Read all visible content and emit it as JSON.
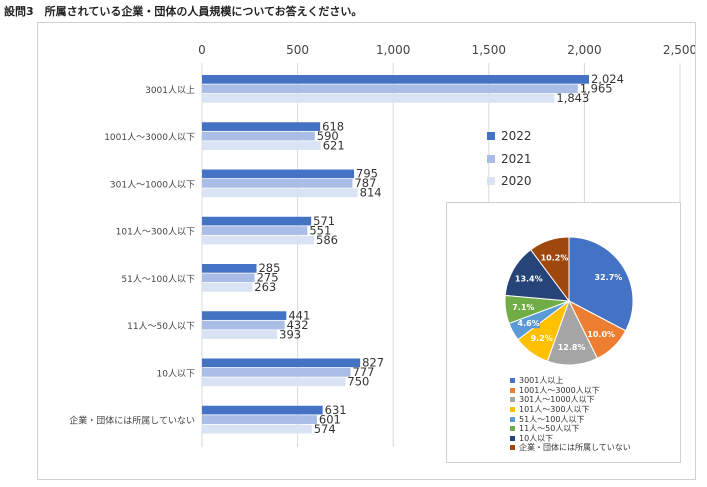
{
  "title": "設問3　所属されている企業・団体の人員規模についてお答えください。",
  "colors": {
    "2022": "#4472c4",
    "2021": "#a9bde6",
    "2020": "#dae3f3",
    "pie": [
      "#4472c4",
      "#ed7d31",
      "#a5a5a5",
      "#ffc000",
      "#5b9bd5",
      "#70ad47",
      "#264478",
      "#9e480e"
    ]
  },
  "chart_data": [
    {
      "type": "bar",
      "orientation": "horizontal",
      "categories": [
        "3001人以上",
        "1001人～3000人以下",
        "301人～1000人以下",
        "101人～300人以下",
        "51人～100人以下",
        "11人～50人以下",
        "10人以下",
        "企業・団体には所属していない"
      ],
      "series": [
        {
          "name": "2022",
          "values": [
            2024,
            618,
            795,
            571,
            285,
            441,
            827,
            631
          ]
        },
        {
          "name": "2021",
          "values": [
            1965,
            590,
            787,
            551,
            275,
            432,
            777,
            601
          ]
        },
        {
          "name": "2020",
          "values": [
            1843,
            621,
            814,
            586,
            263,
            393,
            750,
            574
          ]
        }
      ],
      "xlim": [
        0,
        2500
      ],
      "xticks": [
        "0",
        "500",
        "1,000",
        "1,500",
        "2,000",
        "2,500"
      ],
      "data_labels": true,
      "grid": true,
      "legend": "right"
    },
    {
      "type": "pie",
      "labels": [
        "3001人以上",
        "1001人～3000人以下",
        "301人～1000人以下",
        "101人～300人以下",
        "51人～100人以下",
        "11人～50人以下",
        "10人以下",
        "企業・団体には所属していない"
      ],
      "values": [
        32.7,
        10.0,
        12.8,
        9.2,
        4.6,
        7.1,
        13.4,
        10.2
      ],
      "value_labels": [
        "32.7%",
        "10.0%",
        "12.8%",
        "9.2%",
        "4.6%",
        "7.1%",
        "13.4%",
        "10.2%"
      ],
      "legend": "bottom"
    }
  ]
}
